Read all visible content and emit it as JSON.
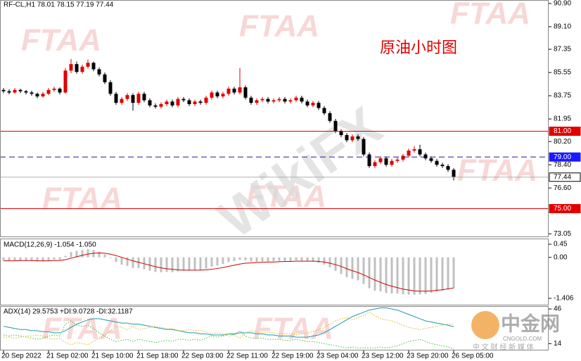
{
  "chart_data": [
    {
      "type": "candlestick",
      "title": "RF-CL,H1  78.01 78.15 77.19 77.44",
      "annotation": "原油小时图",
      "categories": [
        "20 Sep 2022",
        null,
        null,
        null,
        null,
        null,
        null,
        null,
        "21 Sep 02:00",
        null,
        null,
        null,
        null,
        null,
        null,
        null,
        "21 Sep 10:00",
        null,
        null,
        null,
        null,
        null,
        null,
        null,
        "21 Sep 18:00",
        null,
        null,
        null,
        null,
        null,
        null,
        null,
        "22 Sep 03:00",
        null,
        null,
        null,
        null,
        null,
        null,
        null,
        "22 Sep 11:00",
        null,
        null,
        null,
        null,
        null,
        null,
        null,
        "22 Sep 19:00",
        null,
        null,
        null,
        null,
        null,
        null,
        null,
        "23 Sep 04:00",
        null,
        null,
        null,
        null,
        null,
        null,
        null,
        "23 Sep 12:00",
        null,
        null,
        null,
        null,
        null,
        null,
        null,
        "23 Sep 20:00",
        null,
        null,
        null,
        null,
        null,
        null,
        null,
        "26 Sep 05:00"
      ],
      "ohlc": [
        [
          84.2,
          84.35,
          83.95,
          84.1
        ],
        [
          84.1,
          84.25,
          83.85,
          84.0
        ],
        [
          84.0,
          84.35,
          83.9,
          84.2
        ],
        [
          84.2,
          84.3,
          83.95,
          84.1
        ],
        [
          84.1,
          84.2,
          83.85,
          84.0
        ],
        [
          84.0,
          84.15,
          83.75,
          83.9
        ],
        [
          83.9,
          84.0,
          83.55,
          83.7
        ],
        [
          83.7,
          84.05,
          83.6,
          83.9
        ],
        [
          83.9,
          84.35,
          83.8,
          84.2
        ],
        [
          84.2,
          84.45,
          84.05,
          84.3
        ],
        [
          84.3,
          84.4,
          83.85,
          84.0
        ],
        [
          84.0,
          85.9,
          83.9,
          85.7
        ],
        [
          85.7,
          86.6,
          85.5,
          86.2
        ],
        [
          86.2,
          86.4,
          85.45,
          85.6
        ],
        [
          85.6,
          86.15,
          85.45,
          86.0
        ],
        [
          86.0,
          86.55,
          85.85,
          86.3
        ],
        [
          86.3,
          86.4,
          85.65,
          85.8
        ],
        [
          85.8,
          85.95,
          85.25,
          85.4
        ],
        [
          85.4,
          85.55,
          84.65,
          84.8
        ],
        [
          84.8,
          84.95,
          83.75,
          83.9
        ],
        [
          83.9,
          84.05,
          83.05,
          83.2
        ],
        [
          83.2,
          83.65,
          83.05,
          83.5
        ],
        [
          83.5,
          83.95,
          83.35,
          83.8
        ],
        [
          83.8,
          83.95,
          82.6,
          83.2
        ],
        [
          83.2,
          84.05,
          83.05,
          83.9
        ],
        [
          83.9,
          84.05,
          83.25,
          83.4
        ],
        [
          83.4,
          83.55,
          82.85,
          83.0
        ],
        [
          83.0,
          83.15,
          82.75,
          82.9
        ],
        [
          82.9,
          83.25,
          82.75,
          83.1
        ],
        [
          83.1,
          83.45,
          82.95,
          83.3
        ],
        [
          83.3,
          83.45,
          82.85,
          83.0
        ],
        [
          83.0,
          83.65,
          82.85,
          83.5
        ],
        [
          83.5,
          83.65,
          83.25,
          83.4
        ],
        [
          83.4,
          83.55,
          82.95,
          83.1
        ],
        [
          83.1,
          83.45,
          82.95,
          83.3
        ],
        [
          83.3,
          83.45,
          83.05,
          83.2
        ],
        [
          83.2,
          83.75,
          83.05,
          83.6
        ],
        [
          83.6,
          84.15,
          83.45,
          84.0
        ],
        [
          84.0,
          84.15,
          83.55,
          83.7
        ],
        [
          83.7,
          84.05,
          83.55,
          83.9
        ],
        [
          83.9,
          84.45,
          83.75,
          84.3
        ],
        [
          84.3,
          84.45,
          83.85,
          84.0
        ],
        [
          84.0,
          85.9,
          83.85,
          84.4
        ],
        [
          84.4,
          84.55,
          83.45,
          83.6
        ],
        [
          83.6,
          83.75,
          83.05,
          83.2
        ],
        [
          83.2,
          83.55,
          83.05,
          83.4
        ],
        [
          83.4,
          83.65,
          83.25,
          83.5
        ],
        [
          83.5,
          83.65,
          83.15,
          83.3
        ],
        [
          83.3,
          83.55,
          83.15,
          83.4
        ],
        [
          83.4,
          83.65,
          83.25,
          83.5
        ],
        [
          83.5,
          83.65,
          83.15,
          83.3
        ],
        [
          83.3,
          83.55,
          83.15,
          83.4
        ],
        [
          83.4,
          83.75,
          83.25,
          83.6
        ],
        [
          83.6,
          83.75,
          83.15,
          83.3
        ],
        [
          83.3,
          83.45,
          82.85,
          83.0
        ],
        [
          83.0,
          83.35,
          82.85,
          83.2
        ],
        [
          83.2,
          83.35,
          82.65,
          82.8
        ],
        [
          82.8,
          82.95,
          82.25,
          82.4
        ],
        [
          82.4,
          82.55,
          81.65,
          81.8
        ],
        [
          81.8,
          81.95,
          80.85,
          81.0
        ],
        [
          81.0,
          81.15,
          80.55,
          80.7
        ],
        [
          80.7,
          80.85,
          80.15,
          80.3
        ],
        [
          80.3,
          80.75,
          80.15,
          80.6
        ],
        [
          80.6,
          80.75,
          80.25,
          80.4
        ],
        [
          80.4,
          80.55,
          79.05,
          79.2
        ],
        [
          79.2,
          79.35,
          78.15,
          78.3
        ],
        [
          78.3,
          78.75,
          78.15,
          78.6
        ],
        [
          78.6,
          79.05,
          78.45,
          78.9
        ],
        [
          78.9,
          79.05,
          78.25,
          78.4
        ],
        [
          78.4,
          78.85,
          78.25,
          78.7
        ],
        [
          78.7,
          78.95,
          78.55,
          78.8
        ],
        [
          78.8,
          79.25,
          78.65,
          79.1
        ],
        [
          79.1,
          79.65,
          78.95,
          79.5
        ],
        [
          79.5,
          79.85,
          79.35,
          79.6
        ],
        [
          79.6,
          79.95,
          79.05,
          79.2
        ],
        [
          79.2,
          79.35,
          78.75,
          78.9
        ],
        [
          78.9,
          79.05,
          78.55,
          78.7
        ],
        [
          78.7,
          78.85,
          78.25,
          78.4
        ],
        [
          78.4,
          78.55,
          78.15,
          78.3
        ],
        [
          78.3,
          78.45,
          77.85,
          78.01
        ],
        [
          78.01,
          78.15,
          77.19,
          77.44
        ]
      ],
      "up_color": "#e00000",
      "down_color": "#000000",
      "ylim": [
        72.9,
        91.17
      ],
      "yticks": [
        {
          "value": 90.9,
          "label": "90.90"
        },
        {
          "value": 89.1,
          "label": "89.10"
        },
        87.35,
        85.55,
        83.75,
        81.95,
        {
          "value": 80.2,
          "label": "80.20"
        },
        {
          "value": 78.4,
          "label": "78.40"
        },
        {
          "value": 76.6,
          "label": "76.60"
        },
        73.05
      ],
      "levels": [
        {
          "value": 81,
          "label": "81.00",
          "color": "#e00000",
          "style": "solid",
          "label_bg": "#e00000",
          "label_fg": "#ffffff"
        },
        {
          "value": 79,
          "label": "79.00",
          "color": "#1a1a9a",
          "style": "dashed",
          "label_bg": "#1a1aff",
          "label_fg": "#ffffff"
        },
        {
          "value": 77.44,
          "label": "77.44",
          "color": "#b0b0b0",
          "style": "solid",
          "label_bg": "#ffffff",
          "label_fg": "#000000"
        },
        {
          "value": 75,
          "label": "75.00",
          "color": "#e00000",
          "style": "solid",
          "label_bg": "#e00000",
          "label_fg": "#ffffff"
        }
      ],
      "watermarks": [
        "FTAA",
        "WikiFX",
        "中金网",
        "CNGOLD.COM",
        "中 文 财 经 新 媒 体"
      ]
    },
    {
      "type": "macd",
      "title": "MACD(12,26,9) -1.054 -1.050",
      "series": [
        {
          "color": "#c0c0c0",
          "style": "bar",
          "values": [
            -0.1,
            -0.11,
            -0.1,
            -0.1,
            -0.11,
            -0.12,
            -0.14,
            -0.14,
            -0.11,
            -0.08,
            -0.08,
            0.05,
            0.18,
            0.22,
            0.25,
            0.28,
            0.25,
            0.19,
            0.1,
            -0.02,
            -0.16,
            -0.25,
            -0.29,
            -0.36,
            -0.37,
            -0.41,
            -0.46,
            -0.5,
            -0.51,
            -0.5,
            -0.51,
            -0.48,
            -0.46,
            -0.46,
            -0.44,
            -0.43,
            -0.39,
            -0.32,
            -0.28,
            -0.23,
            -0.16,
            -0.13,
            -0.08,
            -0.1,
            -0.14,
            -0.15,
            -0.14,
            -0.14,
            -0.13,
            -0.12,
            -0.12,
            -0.12,
            -0.1,
            -0.11,
            -0.14,
            -0.15,
            -0.19,
            -0.25,
            -0.34,
            -0.46,
            -0.57,
            -0.68,
            -0.74,
            -0.79,
            -0.91,
            -1.06,
            -1.14,
            -1.17,
            -1.22,
            -1.24,
            -1.24,
            -1.27,
            -1.28,
            -1.28,
            -1.27,
            -1.25,
            -1.22,
            -1.18,
            -1.14,
            -1.1,
            -1.054
          ]
        },
        {
          "color": "#d00000",
          "style": "line",
          "values": [
            -0.12,
            -0.12,
            -0.12,
            -0.11,
            -0.11,
            -0.11,
            -0.12,
            -0.12,
            -0.12,
            -0.11,
            -0.11,
            -0.08,
            -0.03,
            0.02,
            0.07,
            0.11,
            0.14,
            0.15,
            0.14,
            0.11,
            0.06,
            0.0,
            -0.06,
            -0.12,
            -0.17,
            -0.22,
            -0.27,
            -0.32,
            -0.36,
            -0.39,
            -0.41,
            -0.43,
            -0.44,
            -0.44,
            -0.44,
            -0.44,
            -0.43,
            -0.41,
            -0.38,
            -0.35,
            -0.31,
            -0.27,
            -0.23,
            -0.2,
            -0.19,
            -0.18,
            -0.17,
            -0.16,
            -0.16,
            -0.15,
            -0.14,
            -0.14,
            -0.13,
            -0.13,
            -0.13,
            -0.13,
            -0.14,
            -0.16,
            -0.2,
            -0.25,
            -0.31,
            -0.39,
            -0.46,
            -0.52,
            -0.6,
            -0.69,
            -0.78,
            -0.86,
            -0.93,
            -0.99,
            -1.04,
            -1.09,
            -1.12,
            -1.15,
            -1.16,
            -1.16,
            -1.15,
            -1.13,
            -1.11,
            -1.08,
            -1.05
          ]
        }
      ],
      "ylim": [
        -1.6,
        0.62
      ],
      "yticks": [
        0.45,
        {
          "value": 0,
          "label": "0.00"
        },
        -1.406
      ]
    },
    {
      "type": "adx",
      "title": "ADX(14) 29.5753 +DI:9.0728 -DI:32.1187",
      "series": [
        {
          "color": "#1e9aa8",
          "style": "solid",
          "values": [
            30,
            29,
            28,
            27,
            27,
            26,
            26,
            25,
            25,
            24,
            24,
            26,
            29,
            32,
            34,
            36,
            37,
            37,
            36,
            35,
            34,
            33,
            33,
            32,
            32,
            31,
            30,
            29,
            28,
            27,
            27,
            26,
            25,
            24,
            24,
            23,
            23,
            22,
            22,
            22,
            23,
            23,
            24,
            24,
            24,
            23,
            23,
            22,
            22,
            21,
            21,
            21,
            20,
            20,
            20,
            21,
            22,
            24,
            27,
            30,
            33,
            36,
            39,
            41,
            43,
            45,
            46,
            47,
            47,
            46,
            45,
            43,
            41,
            39,
            37,
            35,
            34,
            33,
            32,
            31,
            29.5753
          ]
        },
        {
          "color": "#3cbf3c",
          "style": "dotted",
          "values": [
            22,
            21,
            22,
            21,
            20,
            19,
            18,
            19,
            21,
            22,
            21,
            32,
            35,
            31,
            30,
            31,
            28,
            24,
            21,
            18,
            16,
            17,
            18,
            16,
            18,
            17,
            16,
            15,
            16,
            17,
            16,
            18,
            18,
            17,
            18,
            17,
            19,
            21,
            20,
            21,
            23,
            22,
            26,
            21,
            19,
            19,
            19,
            18,
            18,
            18,
            17,
            17,
            18,
            17,
            16,
            16,
            15,
            14,
            13,
            12,
            11,
            10,
            11,
            10,
            10,
            10,
            10,
            11,
            10,
            11,
            12,
            14,
            16,
            17,
            18,
            16,
            14,
            13,
            12,
            11,
            9.0728
          ]
        },
        {
          "color": "#d8b800",
          "style": "dotted",
          "values": [
            20,
            20,
            19,
            20,
            21,
            21,
            22,
            21,
            19,
            18,
            19,
            15,
            13,
            15,
            14,
            13,
            16,
            19,
            22,
            26,
            30,
            29,
            27,
            30,
            27,
            28,
            29,
            30,
            29,
            28,
            28,
            26,
            26,
            27,
            26,
            26,
            25,
            23,
            24,
            23,
            21,
            22,
            19,
            24,
            26,
            25,
            24,
            24,
            24,
            23,
            23,
            23,
            22,
            23,
            24,
            25,
            27,
            29,
            32,
            35,
            37,
            38,
            36,
            38,
            40,
            43,
            40,
            37,
            36,
            35,
            33,
            31,
            29,
            28,
            27,
            28,
            29,
            30,
            31,
            32,
            32.1187
          ]
        }
      ],
      "ylim": [
        9,
        48
      ],
      "yticks": [
        46,
        14
      ]
    }
  ]
}
